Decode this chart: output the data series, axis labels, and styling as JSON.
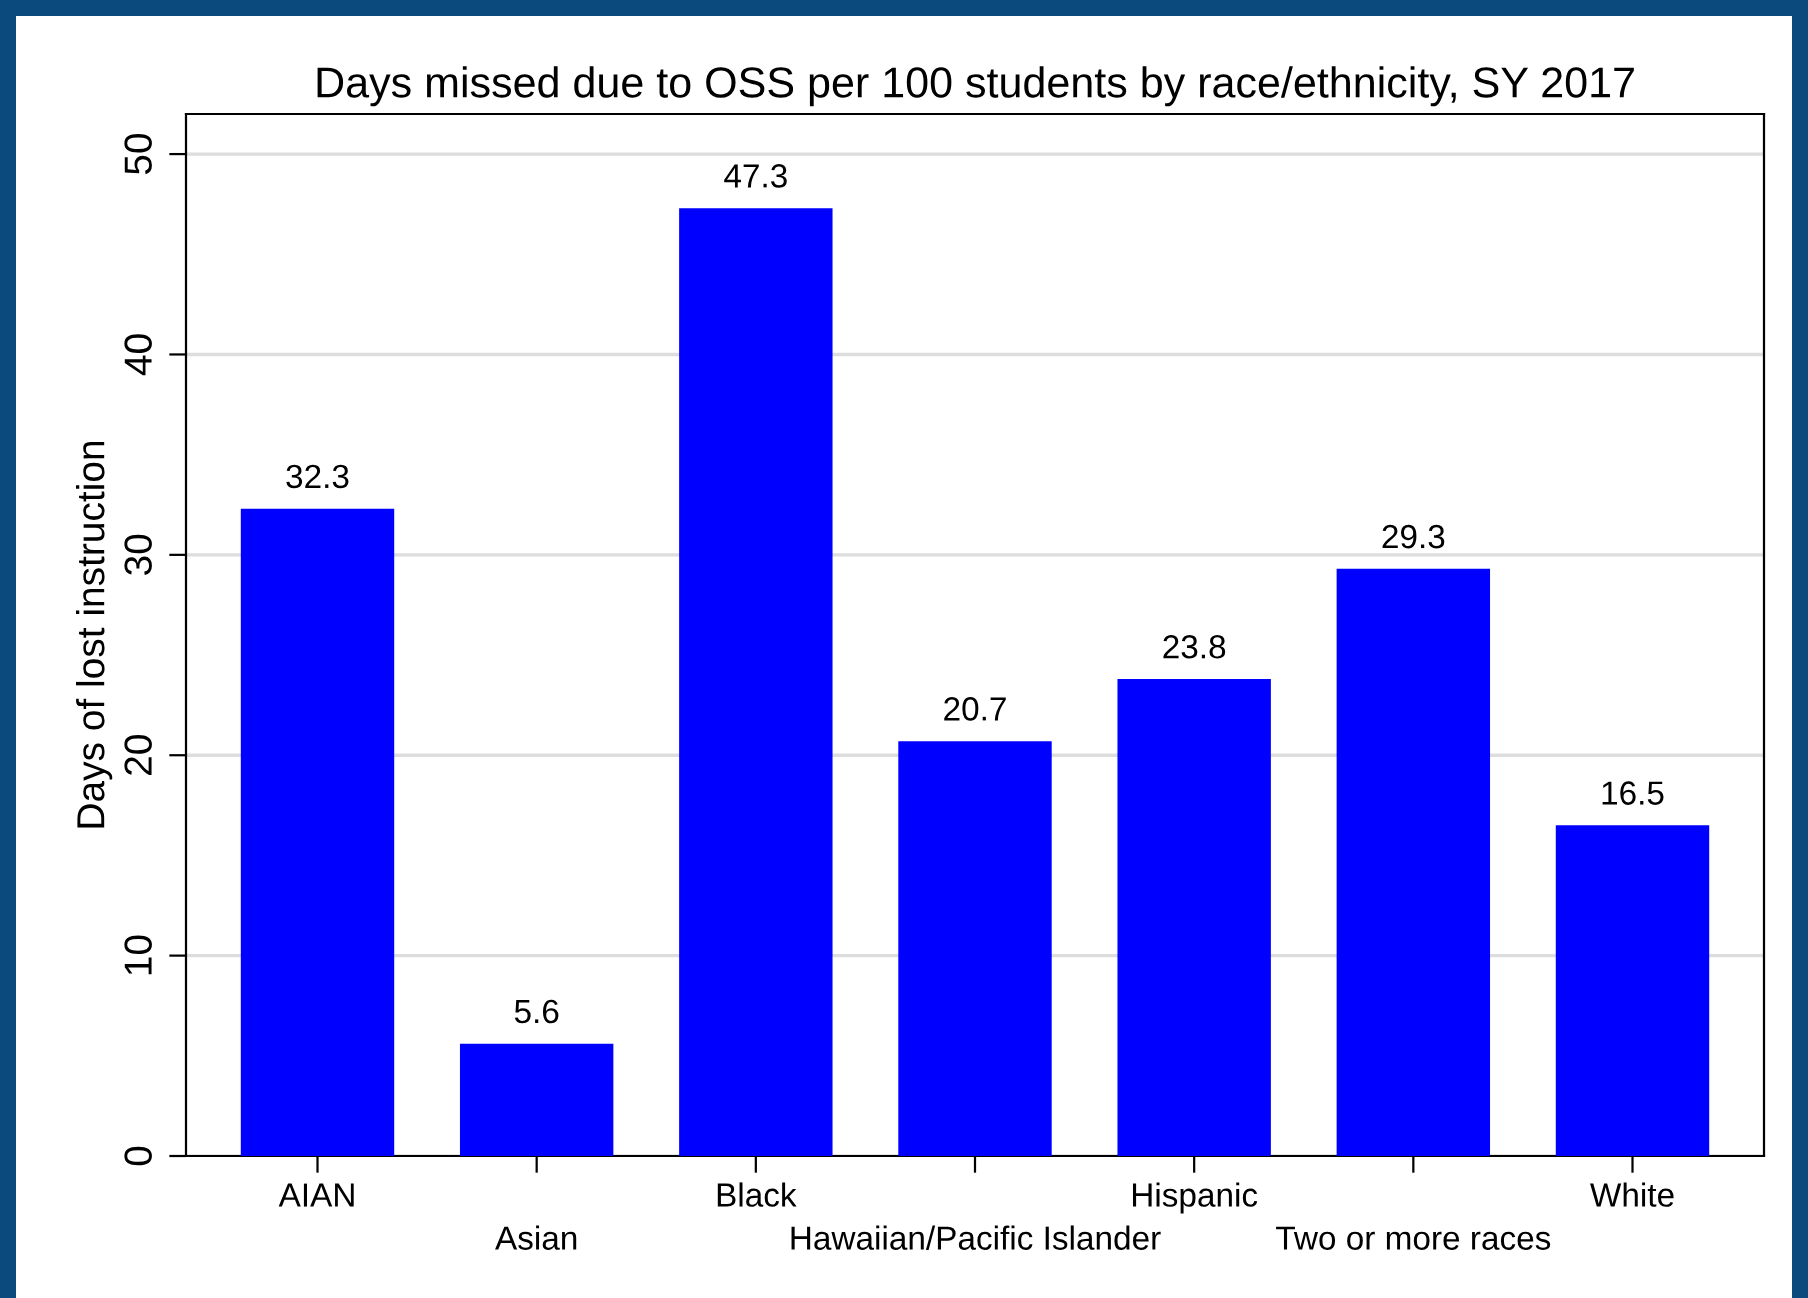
{
  "chart_data": {
    "type": "bar",
    "title": "Days missed due to OSS per 100 students by race/ethnicity, SY 2017",
    "ylabel": "Days of lost instruction",
    "categories": [
      "AIAN",
      "Asian",
      "Black",
      "Hawaiian/Pacific Islander",
      "Hispanic",
      "Two or more races",
      "White"
    ],
    "values": [
      32.3,
      5.6,
      47.3,
      20.7,
      23.8,
      29.3,
      16.5
    ],
    "color": "#0000ff",
    "ylim": [
      0,
      52
    ],
    "yticks": [
      0,
      10,
      20,
      30,
      40,
      50
    ],
    "grid": "y",
    "data_labels": true,
    "legend": false
  }
}
